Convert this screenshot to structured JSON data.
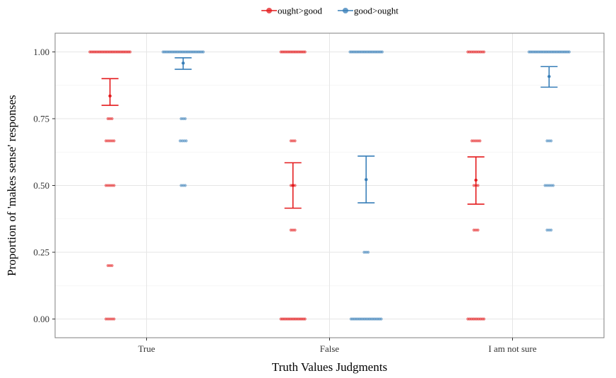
{
  "chart_data": {
    "type": "scatter",
    "title": "",
    "xlabel": "Truth Values Judgments",
    "ylabel": "Proportion of 'makes sense' responses",
    "categories": [
      "True",
      "False",
      "I am not sure"
    ],
    "ylim": [
      -0.07,
      1.07
    ],
    "yticks": [
      0.0,
      0.25,
      0.5,
      0.75,
      1.0
    ],
    "ytick_labels": [
      "0.00",
      "0.25",
      "0.50",
      "0.75",
      "1.00"
    ],
    "grid": true,
    "legend_position": "top",
    "series": [
      {
        "name": "ought>good",
        "color": "#e41a1c",
        "points": {
          "True": [
            1.0,
            0.75,
            0.667,
            0.5,
            0.2,
            0.0
          ],
          "False": [
            1.0,
            0.667,
            0.5,
            0.333,
            0.0
          ],
          "I am not sure": [
            1.0,
            0.667,
            0.5,
            0.333,
            0.0
          ]
        },
        "point_widths": {
          "True": [
            1.0,
            0.1,
            0.2,
            0.2,
            0.1,
            0.2
          ],
          "False": [
            0.6,
            0.1,
            0.1,
            0.1,
            0.6
          ],
          "I am not sure": [
            0.4,
            0.2,
            0.1,
            0.1,
            0.4
          ]
        },
        "mean": [
          0.835,
          0.5,
          0.52
        ],
        "ci_low": [
          0.8,
          0.415,
          0.43
        ],
        "ci_high": [
          0.9,
          0.585,
          0.607
        ]
      },
      {
        "name": "good>ought",
        "color": "#377eb8",
        "points": {
          "True": [
            1.0,
            0.75,
            0.667,
            0.5
          ],
          "False": [
            1.0,
            0.25,
            0.0
          ],
          "I am not sure": [
            1.0,
            0.667,
            0.5,
            0.333
          ]
        },
        "point_widths": {
          "True": [
            1.0,
            0.1,
            0.15,
            0.1
          ],
          "False": [
            0.8,
            0.1,
            0.75
          ],
          "I am not sure": [
            1.0,
            0.1,
            0.2,
            0.1
          ]
        },
        "mean": [
          0.958,
          0.522,
          0.908
        ],
        "ci_low": [
          0.935,
          0.435,
          0.868
        ],
        "ci_high": [
          0.978,
          0.61,
          0.945
        ]
      }
    ]
  }
}
